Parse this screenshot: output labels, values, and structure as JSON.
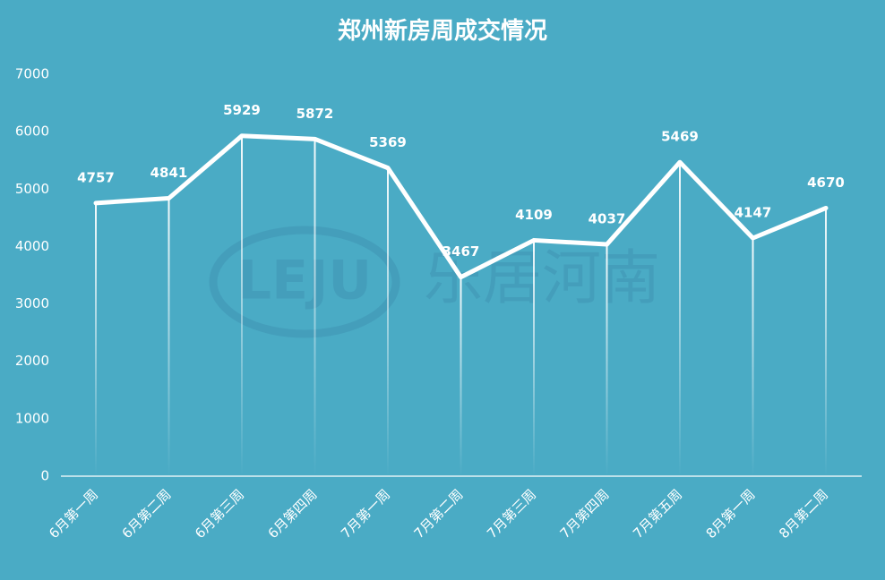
{
  "chart_data": {
    "type": "line",
    "title": "郑州新房周成交情况",
    "categories": [
      "6月第一周",
      "6月第二周",
      "6月第三周",
      "6月第四周",
      "7月第一周",
      "7月第二周",
      "7月第三周",
      "7月第四周",
      "7月第五周",
      "8月第一周",
      "8月第二周"
    ],
    "values": [
      4757,
      4841,
      5929,
      5872,
      5369,
      3467,
      4109,
      4037,
      5469,
      4147,
      4670
    ],
    "color": "#ffffff",
    "ylim": [
      0,
      7000
    ],
    "yticks": [
      0,
      1000,
      2000,
      3000,
      4000,
      5000,
      6000,
      7000
    ],
    "drop_lines": true,
    "watermark": {
      "logo": "LEJU",
      "text": "乐居河南"
    }
  }
}
